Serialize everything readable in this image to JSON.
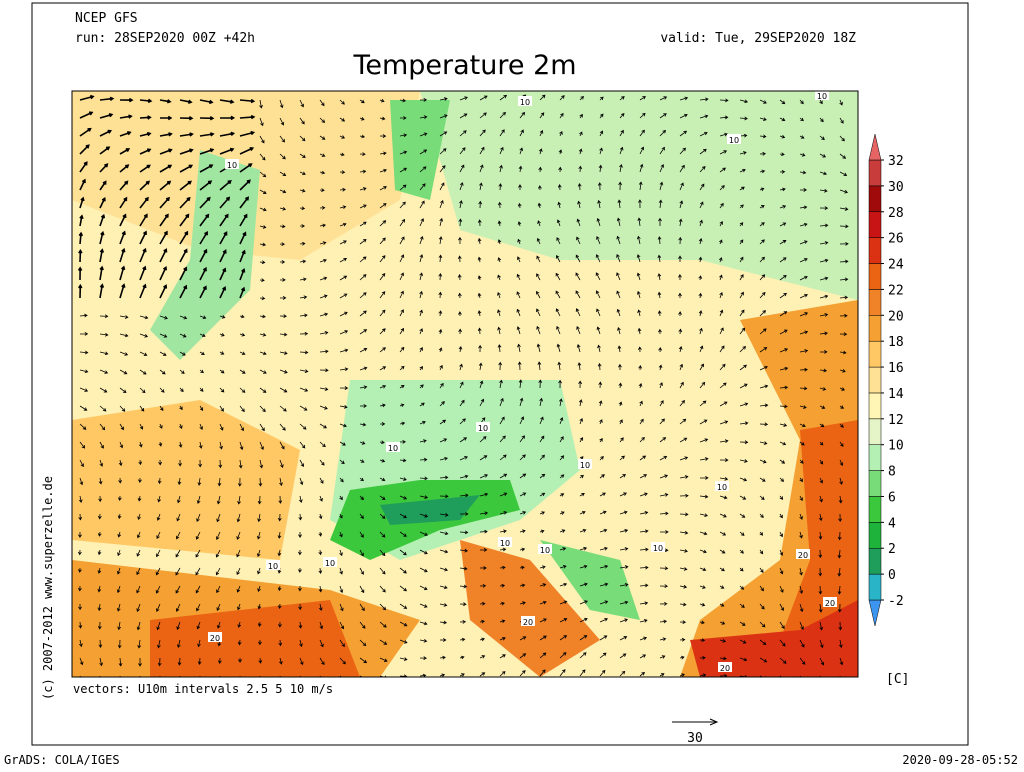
{
  "header": {
    "model": "NCEP GFS",
    "run": "run: 28SEP2020 00Z +42h",
    "valid": "valid: Tue, 29SEP2020 18Z",
    "title": "Temperature 2m"
  },
  "colorbar": {
    "levels": [
      -2,
      0,
      2,
      4,
      6,
      8,
      10,
      12,
      14,
      16,
      18,
      20,
      22,
      24,
      26,
      28,
      30,
      32
    ],
    "colors": [
      "#3c96f0",
      "#2ab4c8",
      "#1e9e5a",
      "#1eb43c",
      "#3cc83c",
      "#78dc78",
      "#b4f0b4",
      "#e6f5c8",
      "#fff5b4",
      "#ffe196",
      "#ffc864",
      "#f5a032",
      "#f08228",
      "#eb6414",
      "#dc3214",
      "#c81414",
      "#a00a0a",
      "#c83c3c",
      "#e66464"
    ],
    "unit": "[C]"
  },
  "map": {
    "contour_labels": [
      "10",
      "10",
      "10",
      "10",
      "10",
      "10",
      "10",
      "10",
      "10",
      "10",
      "10",
      "10",
      "10",
      "20",
      "20",
      "20",
      "20",
      "20"
    ]
  },
  "vectors_note": "vectors: U10m intervals 2.5 5 10 m/s",
  "reference_arrow": "30",
  "copyright": "(c) 2007-2012 www.superzelle.de",
  "footer": {
    "left": "GrADS: COLA/IGES",
    "right": "2020-09-28-05:52"
  }
}
